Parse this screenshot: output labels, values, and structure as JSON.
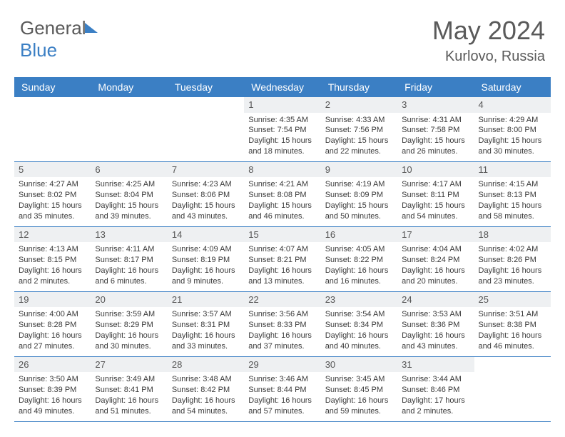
{
  "brand": {
    "part1": "General",
    "part2": "Blue"
  },
  "title": "May 2024",
  "location": "Kurlovo, Russia",
  "colors": {
    "accent": "#3b7fc4",
    "daynum_bg": "#eef0f2",
    "text": "#3a3a3a"
  },
  "dow": [
    "Sunday",
    "Monday",
    "Tuesday",
    "Wednesday",
    "Thursday",
    "Friday",
    "Saturday"
  ],
  "weeks": [
    [
      null,
      null,
      null,
      {
        "n": "1",
        "sr": "4:35 AM",
        "ss": "7:54 PM",
        "dl": "15 hours and 18 minutes."
      },
      {
        "n": "2",
        "sr": "4:33 AM",
        "ss": "7:56 PM",
        "dl": "15 hours and 22 minutes."
      },
      {
        "n": "3",
        "sr": "4:31 AM",
        "ss": "7:58 PM",
        "dl": "15 hours and 26 minutes."
      },
      {
        "n": "4",
        "sr": "4:29 AM",
        "ss": "8:00 PM",
        "dl": "15 hours and 30 minutes."
      }
    ],
    [
      {
        "n": "5",
        "sr": "4:27 AM",
        "ss": "8:02 PM",
        "dl": "15 hours and 35 minutes."
      },
      {
        "n": "6",
        "sr": "4:25 AM",
        "ss": "8:04 PM",
        "dl": "15 hours and 39 minutes."
      },
      {
        "n": "7",
        "sr": "4:23 AM",
        "ss": "8:06 PM",
        "dl": "15 hours and 43 minutes."
      },
      {
        "n": "8",
        "sr": "4:21 AM",
        "ss": "8:08 PM",
        "dl": "15 hours and 46 minutes."
      },
      {
        "n": "9",
        "sr": "4:19 AM",
        "ss": "8:09 PM",
        "dl": "15 hours and 50 minutes."
      },
      {
        "n": "10",
        "sr": "4:17 AM",
        "ss": "8:11 PM",
        "dl": "15 hours and 54 minutes."
      },
      {
        "n": "11",
        "sr": "4:15 AM",
        "ss": "8:13 PM",
        "dl": "15 hours and 58 minutes."
      }
    ],
    [
      {
        "n": "12",
        "sr": "4:13 AM",
        "ss": "8:15 PM",
        "dl": "16 hours and 2 minutes."
      },
      {
        "n": "13",
        "sr": "4:11 AM",
        "ss": "8:17 PM",
        "dl": "16 hours and 6 minutes."
      },
      {
        "n": "14",
        "sr": "4:09 AM",
        "ss": "8:19 PM",
        "dl": "16 hours and 9 minutes."
      },
      {
        "n": "15",
        "sr": "4:07 AM",
        "ss": "8:21 PM",
        "dl": "16 hours and 13 minutes."
      },
      {
        "n": "16",
        "sr": "4:05 AM",
        "ss": "8:22 PM",
        "dl": "16 hours and 16 minutes."
      },
      {
        "n": "17",
        "sr": "4:04 AM",
        "ss": "8:24 PM",
        "dl": "16 hours and 20 minutes."
      },
      {
        "n": "18",
        "sr": "4:02 AM",
        "ss": "8:26 PM",
        "dl": "16 hours and 23 minutes."
      }
    ],
    [
      {
        "n": "19",
        "sr": "4:00 AM",
        "ss": "8:28 PM",
        "dl": "16 hours and 27 minutes."
      },
      {
        "n": "20",
        "sr": "3:59 AM",
        "ss": "8:29 PM",
        "dl": "16 hours and 30 minutes."
      },
      {
        "n": "21",
        "sr": "3:57 AM",
        "ss": "8:31 PM",
        "dl": "16 hours and 33 minutes."
      },
      {
        "n": "22",
        "sr": "3:56 AM",
        "ss": "8:33 PM",
        "dl": "16 hours and 37 minutes."
      },
      {
        "n": "23",
        "sr": "3:54 AM",
        "ss": "8:34 PM",
        "dl": "16 hours and 40 minutes."
      },
      {
        "n": "24",
        "sr": "3:53 AM",
        "ss": "8:36 PM",
        "dl": "16 hours and 43 minutes."
      },
      {
        "n": "25",
        "sr": "3:51 AM",
        "ss": "8:38 PM",
        "dl": "16 hours and 46 minutes."
      }
    ],
    [
      {
        "n": "26",
        "sr": "3:50 AM",
        "ss": "8:39 PM",
        "dl": "16 hours and 49 minutes."
      },
      {
        "n": "27",
        "sr": "3:49 AM",
        "ss": "8:41 PM",
        "dl": "16 hours and 51 minutes."
      },
      {
        "n": "28",
        "sr": "3:48 AM",
        "ss": "8:42 PM",
        "dl": "16 hours and 54 minutes."
      },
      {
        "n": "29",
        "sr": "3:46 AM",
        "ss": "8:44 PM",
        "dl": "16 hours and 57 minutes."
      },
      {
        "n": "30",
        "sr": "3:45 AM",
        "ss": "8:45 PM",
        "dl": "16 hours and 59 minutes."
      },
      {
        "n": "31",
        "sr": "3:44 AM",
        "ss": "8:46 PM",
        "dl": "17 hours and 2 minutes."
      },
      null
    ]
  ],
  "labels": {
    "sunrise": "Sunrise: ",
    "sunset": "Sunset: ",
    "daylight": "Daylight: "
  }
}
